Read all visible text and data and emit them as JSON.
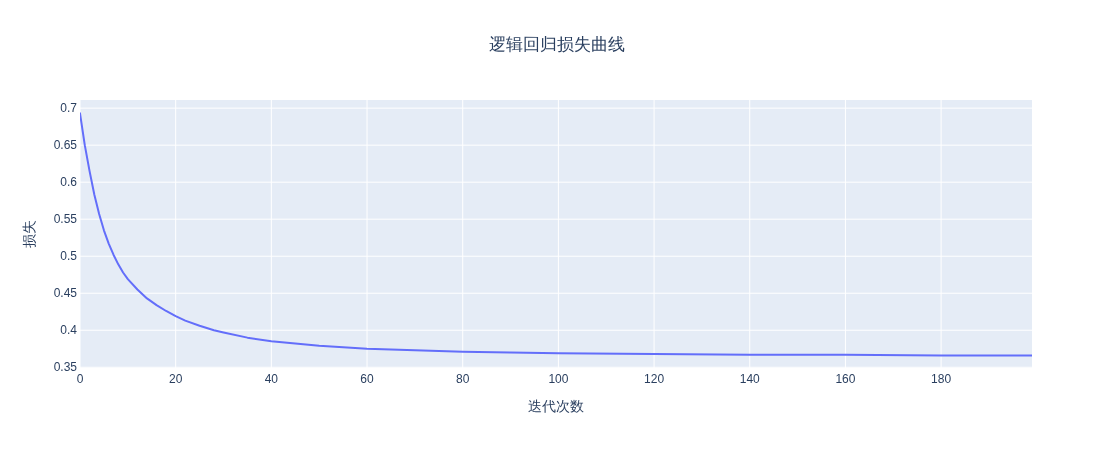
{
  "chart_data": {
    "type": "line",
    "title": "逻辑回归损失曲线",
    "xlabel": "迭代次数",
    "ylabel": "损失",
    "x": [
      0,
      1,
      2,
      3,
      4,
      5,
      6,
      7,
      8,
      9,
      10,
      12,
      14,
      16,
      18,
      20,
      22,
      25,
      28,
      30,
      35,
      40,
      45,
      50,
      60,
      70,
      80,
      90,
      100,
      120,
      140,
      160,
      180,
      199
    ],
    "series": [
      {
        "color": "#636efa",
        "values": [
          0.693,
          0.65,
          0.615,
          0.583,
          0.557,
          0.535,
          0.517,
          0.502,
          0.489,
          0.478,
          0.469,
          0.455,
          0.443,
          0.434,
          0.426,
          0.419,
          0.413,
          0.406,
          0.4,
          0.397,
          0.39,
          0.385,
          0.382,
          0.379,
          0.375,
          0.373,
          0.371,
          0.37,
          0.369,
          0.368,
          0.367,
          0.367,
          0.366,
          0.366
        ]
      }
    ],
    "xlim": [
      0,
      199
    ],
    "ylim": [
      0.349,
      0.711
    ],
    "xticks": [
      0,
      20,
      40,
      60,
      80,
      100,
      120,
      140,
      160,
      180
    ],
    "yticks": [
      0.35,
      0.4,
      0.45,
      0.5,
      0.55,
      0.6,
      0.65,
      0.7
    ],
    "grid": true,
    "marker": "none",
    "line_style": "solid"
  }
}
